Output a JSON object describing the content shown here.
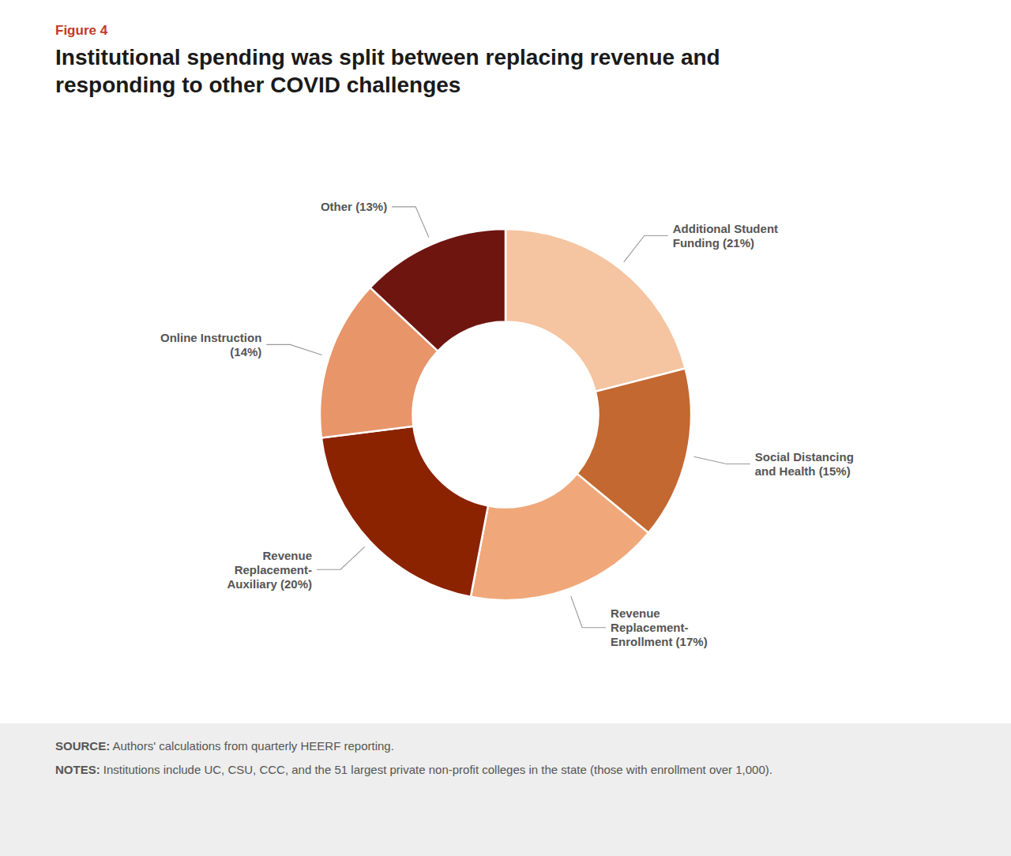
{
  "chart_data": {
    "type": "donut",
    "title": "Institutional spending was split between replacing revenue and\nresponding to other COVID challenges",
    "values": [
      21,
      15,
      17,
      20,
      14,
      13
    ],
    "value_labels": [
      "Additional Student\nFunding (21%)",
      "Social Distancing\nand Health (15%)",
      "Revenue\nReplacement-\nEnrollment (17%)",
      "Revenue\nReplacement-\nAuxiliary (20%)",
      "Online Instruction\n(14%)",
      "Other (13%)"
    ],
    "data_labels": true,
    "colors": [
      "#f5c4a0",
      "#c36830",
      "#f0a87a",
      "#8b2200",
      "#e8956a",
      "#6e1510"
    ],
    "annotations": [
      {
        "text": "Figure 4"
      },
      {
        "text": "SOURCE: Authors' calculations from quarterly HEERF reporting."
      },
      {
        "text": "NOTES: Institutions include UC, CSU, CCC, and the 51 largest private non-profit colleges in the state (those with enrollment over 1,000)."
      }
    ]
  }
}
